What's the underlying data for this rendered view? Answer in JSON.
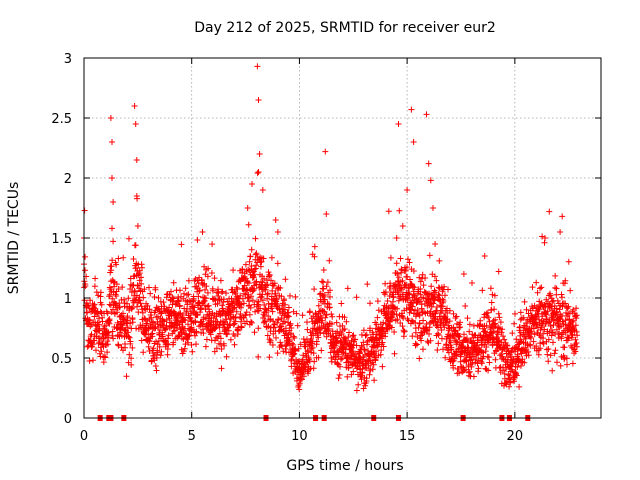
{
  "chart_data": {
    "type": "scatter",
    "title": "Day 212 of 2025, SRMTID for receiver eur2",
    "xlabel": "GPS time / hours",
    "ylabel": "SRMTID / TECUs",
    "xlim": [
      0,
      24
    ],
    "ylim": [
      0,
      3
    ],
    "xticks": [
      "0",
      "5",
      "10",
      "15",
      "20"
    ],
    "yticks": [
      "0",
      "0.5",
      "1",
      "1.5",
      "2",
      "2.5",
      "3"
    ],
    "grid": true,
    "marker": "plus",
    "color": "#ff0000",
    "envelope": [
      [
        0.0,
        1.2,
        0.35
      ],
      [
        0.2,
        0.7,
        0.3
      ],
      [
        0.5,
        0.9,
        0.3
      ],
      [
        1.0,
        0.6,
        0.25
      ],
      [
        1.3,
        1.1,
        0.4
      ],
      [
        1.6,
        0.8,
        0.3
      ],
      [
        2.0,
        0.7,
        0.3
      ],
      [
        2.4,
        1.1,
        0.45
      ],
      [
        2.8,
        0.8,
        0.3
      ],
      [
        3.2,
        0.7,
        0.25
      ],
      [
        3.6,
        0.75,
        0.25
      ],
      [
        4.0,
        0.85,
        0.25
      ],
      [
        4.5,
        0.8,
        0.25
      ],
      [
        5.0,
        0.85,
        0.25
      ],
      [
        5.5,
        0.9,
        0.25
      ],
      [
        6.0,
        0.85,
        0.25
      ],
      [
        6.5,
        0.8,
        0.25
      ],
      [
        7.0,
        0.9,
        0.25
      ],
      [
        7.5,
        1.05,
        0.3
      ],
      [
        8.0,
        1.1,
        0.35
      ],
      [
        8.5,
        0.95,
        0.3
      ],
      [
        9.0,
        0.9,
        0.3
      ],
      [
        9.5,
        0.7,
        0.25
      ],
      [
        10.0,
        0.35,
        0.12
      ],
      [
        10.4,
        0.55,
        0.2
      ],
      [
        10.8,
        0.75,
        0.25
      ],
      [
        11.2,
        0.95,
        0.3
      ],
      [
        11.6,
        0.55,
        0.2
      ],
      [
        12.0,
        0.6,
        0.2
      ],
      [
        12.5,
        0.55,
        0.2
      ],
      [
        13.0,
        0.45,
        0.2
      ],
      [
        13.5,
        0.6,
        0.2
      ],
      [
        14.0,
        0.8,
        0.3
      ],
      [
        14.5,
        1.0,
        0.3
      ],
      [
        15.0,
        1.0,
        0.3
      ],
      [
        15.5,
        0.9,
        0.35
      ],
      [
        16.0,
        0.9,
        0.3
      ],
      [
        16.5,
        0.95,
        0.3
      ],
      [
        17.0,
        0.6,
        0.25
      ],
      [
        17.5,
        0.55,
        0.2
      ],
      [
        18.0,
        0.55,
        0.2
      ],
      [
        18.5,
        0.65,
        0.2
      ],
      [
        19.0,
        0.75,
        0.25
      ],
      [
        19.5,
        0.5,
        0.2
      ],
      [
        20.0,
        0.4,
        0.15
      ],
      [
        20.5,
        0.7,
        0.25
      ],
      [
        21.0,
        0.8,
        0.25
      ],
      [
        21.5,
        0.8,
        0.25
      ],
      [
        22.0,
        0.8,
        0.3
      ],
      [
        22.8,
        0.75,
        0.25
      ]
    ],
    "spikes": [
      [
        0.0,
        1.5
      ],
      [
        1.25,
        2.5
      ],
      [
        1.3,
        2.3
      ],
      [
        1.3,
        2.0
      ],
      [
        1.35,
        1.8
      ],
      [
        2.35,
        2.6
      ],
      [
        2.4,
        2.45
      ],
      [
        2.45,
        2.15
      ],
      [
        2.45,
        1.85
      ],
      [
        2.5,
        1.6
      ],
      [
        5.5,
        1.55
      ],
      [
        7.6,
        1.75
      ],
      [
        7.8,
        1.95
      ],
      [
        8.05,
        2.93
      ],
      [
        8.1,
        2.65
      ],
      [
        8.15,
        2.2
      ],
      [
        8.1,
        2.05
      ],
      [
        8.3,
        1.9
      ],
      [
        8.9,
        1.65
      ],
      [
        9.0,
        1.55
      ],
      [
        11.2,
        2.22
      ],
      [
        11.25,
        1.7
      ],
      [
        14.6,
        2.45
      ],
      [
        14.8,
        1.6
      ],
      [
        15.0,
        1.9
      ],
      [
        15.2,
        2.57
      ],
      [
        15.3,
        2.3
      ],
      [
        15.9,
        2.53
      ],
      [
        16.0,
        2.12
      ],
      [
        16.1,
        1.98
      ],
      [
        16.2,
        1.75
      ],
      [
        16.3,
        1.45
      ],
      [
        18.6,
        1.35
      ],
      [
        21.4,
        1.5
      ],
      [
        21.6,
        1.72
      ],
      [
        22.1,
        1.55
      ],
      [
        22.2,
        1.68
      ]
    ],
    "data_gaps_hours": [
      0.75,
      1.15,
      1.25,
      1.85,
      8.45,
      10.75,
      11.15,
      13.45,
      14.6,
      17.6,
      19.4,
      19.75,
      20.6
    ],
    "point_count": 2800
  }
}
